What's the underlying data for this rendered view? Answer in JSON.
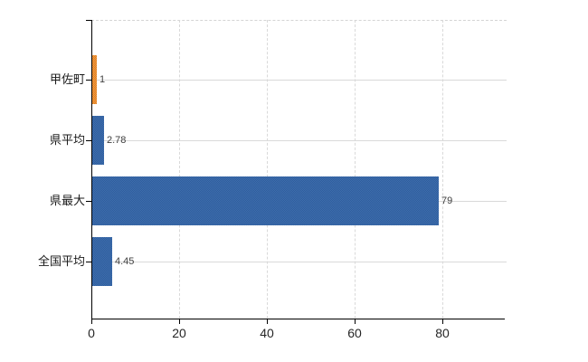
{
  "chart_data": {
    "type": "bar",
    "orientation": "horizontal",
    "title": "",
    "xlabel": "",
    "ylabel": "",
    "categories": [
      "甲佐町",
      "県平均",
      "県最大",
      "全国平均"
    ],
    "values": [
      1,
      2.78,
      79,
      4.45
    ],
    "value_labels": [
      "1",
      "2.78",
      "79",
      "4.45"
    ],
    "x_tick_labels": [
      "0",
      "20",
      "40",
      "60",
      "80"
    ],
    "x_tick_values": [
      0,
      20,
      40,
      60,
      80
    ],
    "xlim": [
      0,
      94.6
    ],
    "grid": true,
    "legend": false,
    "highlight_index": 0,
    "colors": {
      "bar": "#3F6FAC",
      "bar_texture": "#2E5C9E",
      "highlight_bar": "#F09B45",
      "highlight_texture": "#E07F20",
      "axis": "#000000",
      "gridline": "#D9D9D9",
      "value_label": "#3F3F3F",
      "tick_label": "#262626"
    }
  }
}
